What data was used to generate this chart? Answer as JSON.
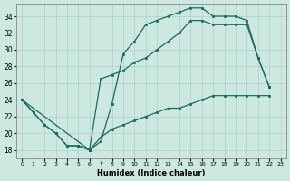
{
  "xlabel": "Humidex (Indice chaleur)",
  "xlim": [
    -0.5,
    23.5
  ],
  "ylim": [
    17,
    35.5
  ],
  "yticks": [
    18,
    20,
    22,
    24,
    26,
    28,
    30,
    32,
    34
  ],
  "xticks": [
    0,
    1,
    2,
    3,
    4,
    5,
    6,
    7,
    8,
    9,
    10,
    11,
    12,
    13,
    14,
    15,
    16,
    17,
    18,
    19,
    20,
    21,
    22,
    23
  ],
  "bg_color": "#cce8e0",
  "grid_color": "#aad0c8",
  "line_color": "#1a6b5a",
  "curve1_x": [
    0,
    1,
    2,
    3,
    4,
    5,
    6,
    7,
    8,
    9,
    10,
    11,
    12,
    13,
    14,
    15,
    16,
    17,
    18,
    19,
    20,
    21,
    22
  ],
  "curve1_y": [
    24.0,
    22.5,
    21.0,
    20.0,
    18.5,
    18.5,
    18.0,
    19.0,
    23.5,
    29.5,
    31.0,
    33.0,
    33.5,
    34.0,
    34.5,
    35.0,
    35.0,
    34.0,
    34.0,
    34.0,
    33.5,
    29.0,
    25.5
  ],
  "curve2_x": [
    0,
    6,
    7,
    8,
    9,
    10,
    11,
    12,
    13,
    14,
    15,
    16,
    17,
    18,
    19,
    20,
    21,
    22
  ],
  "curve2_y": [
    24.0,
    18.0,
    26.5,
    27.0,
    27.5,
    28.5,
    29.0,
    30.0,
    31.0,
    32.0,
    33.5,
    33.5,
    33.0,
    33.0,
    33.0,
    33.0,
    29.0,
    25.5
  ],
  "curve3_x": [
    0,
    1,
    2,
    3,
    4,
    5,
    6,
    7,
    8,
    9,
    10,
    11,
    12,
    13,
    14,
    15,
    16,
    17,
    18,
    19,
    20,
    21,
    22
  ],
  "curve3_y": [
    24.0,
    22.5,
    21.0,
    20.0,
    18.5,
    18.5,
    18.0,
    19.5,
    20.5,
    21.0,
    21.5,
    22.0,
    22.5,
    23.0,
    23.0,
    23.5,
    24.0,
    24.5,
    24.5,
    24.5,
    24.5,
    24.5,
    24.5
  ]
}
